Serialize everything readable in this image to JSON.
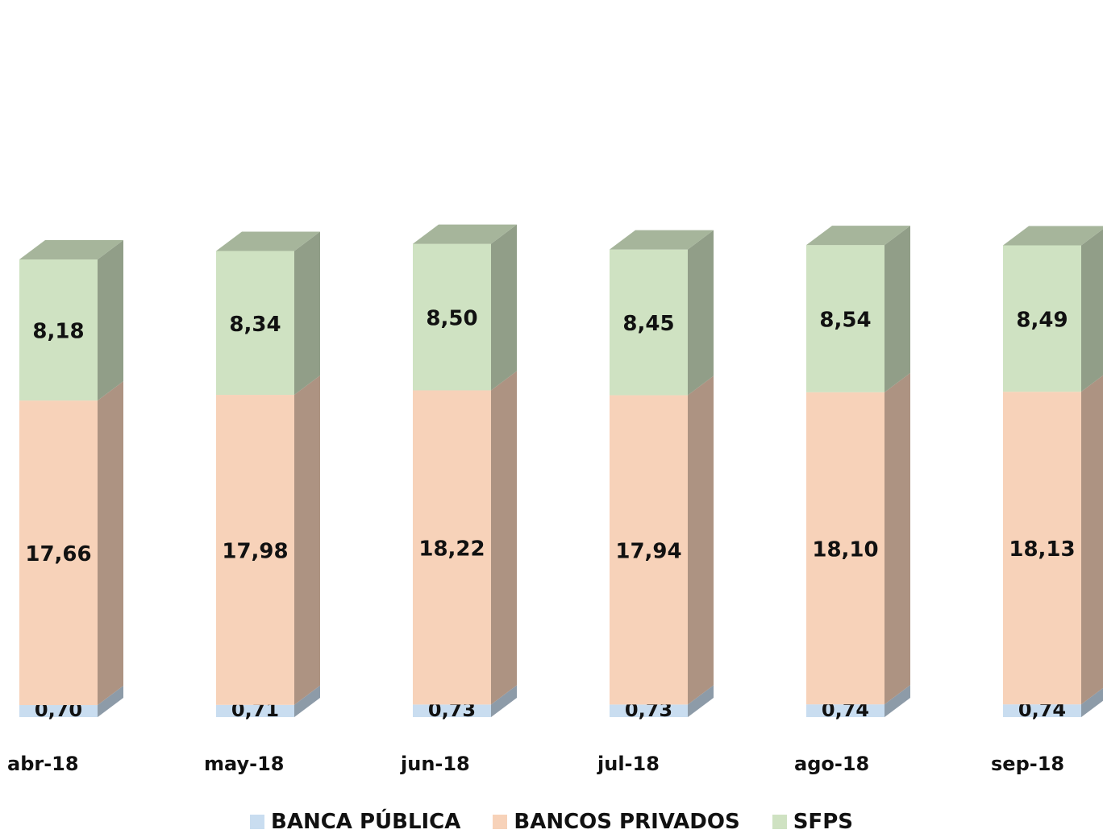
{
  "chart_data": {
    "type": "bar",
    "stacked": true,
    "categories": [
      "abr-18",
      "may-18",
      "jun-18",
      "jul-18",
      "ago-18",
      "sep-18"
    ],
    "series": [
      {
        "name": "BANCA PÚBLICA",
        "values": [
          0.7,
          0.71,
          0.73,
          0.73,
          0.74,
          0.74
        ],
        "labels": [
          "0,70",
          "0,71",
          "0,73",
          "0,73",
          "0,74",
          "0,74"
        ],
        "color": "#c9ddf0"
      },
      {
        "name": "BANCOS PRIVADOS",
        "values": [
          17.66,
          17.98,
          18.22,
          17.94,
          18.1,
          18.13
        ],
        "labels": [
          "17,66",
          "17,98",
          "18,22",
          "17,94",
          "18,10",
          "18,13"
        ],
        "color": "#f7d2b9"
      },
      {
        "name": "SFPS",
        "values": [
          8.18,
          8.34,
          8.5,
          8.45,
          8.54,
          8.49
        ],
        "labels": [
          "8,18",
          "8,34",
          "8,50",
          "8,45",
          "8,54",
          "8,49"
        ],
        "color": "#cfe2c2"
      }
    ],
    "legend_position": "bottom",
    "grid": false
  }
}
